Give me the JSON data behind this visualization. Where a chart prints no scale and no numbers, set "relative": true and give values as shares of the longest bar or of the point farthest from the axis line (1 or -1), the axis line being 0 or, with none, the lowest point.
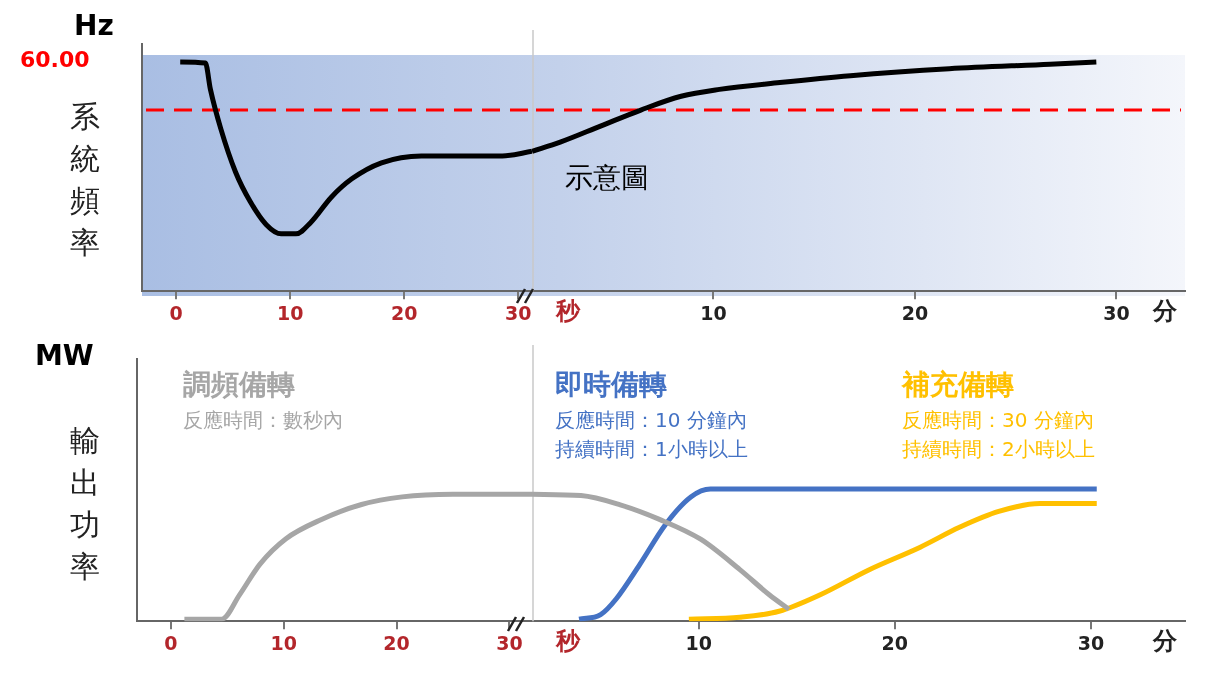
{
  "chart_data": [
    {
      "type": "line",
      "ylabel": "系統頻率",
      "xlabel": "秒",
      "annotations": [
        "Hz",
        "60.00"
      ],
      "relative": true,
      "legend": false,
      "grid": false,
      "marker": "none",
      "series": [
        {
          "color": "#000000",
          "x": [
            0.35,
            2.56,
            3.0,
            3.9,
            5.2,
            6.5,
            7.9,
            9.2,
            10.5,
            11.8,
            13.6,
            15.4,
            18.0,
            21.5,
            25.1,
            28.6,
            31.2
          ],
          "values": [
            1.0,
            0.995,
            0.88,
            0.71,
            0.52,
            0.39,
            0.29,
            0.25,
            0.25,
            0.3,
            0.41,
            0.49,
            0.56,
            0.59,
            0.59,
            0.59,
            0.61
          ]
        }
      ],
      "xlim": [
        -3,
        31.2
      ],
      "xticks": [
        0,
        10,
        20,
        30
      ],
      "ref_lines": [
        {
          "axis": "y",
          "value": 0.79,
          "color": "#ff0000",
          "line_style": "dashed"
        }
      ]
    },
    {
      "type": "line",
      "xlabel": "分",
      "annotations": [
        "示意圖"
      ],
      "relative": true,
      "legend": false,
      "grid": false,
      "marker": "none",
      "series": [
        {
          "color": "#000000",
          "x": [
            1.0,
            2.4,
            4.4,
            6.4,
            8.4,
            10.3,
            13.3,
            16.8,
            21.7,
            26.7,
            29.0
          ],
          "values": [
            0.61,
            0.65,
            0.72,
            0.79,
            0.85,
            0.88,
            0.91,
            0.94,
            0.97,
            0.99,
            1.0
          ]
        }
      ],
      "xlim": [
        1,
        33.4
      ],
      "xticks": [
        10,
        20,
        30
      ],
      "ref_lines": [
        {
          "axis": "y",
          "value": 0.79,
          "color": "#ff0000",
          "line_style": "dashed"
        }
      ]
    },
    {
      "type": "line",
      "ylabel": "輸出功率",
      "xlabel": "秒",
      "annotations": [
        "MW",
        "反應時間：數秒內"
      ],
      "relative": true,
      "legend": false,
      "grid": false,
      "marker": "none",
      "series": [
        {
          "name": "調頻備轉",
          "color": "#a6a6a6",
          "x": [
            1.2,
            4.5,
            6.1,
            7.9,
            10.2,
            13.3,
            16.9,
            20.5,
            25.0,
            32.0
          ],
          "values": [
            0.016,
            0.016,
            0.21,
            0.45,
            0.65,
            0.8,
            0.92,
            0.98,
            1.0,
            1.0
          ]
        }
      ],
      "xlim": [
        -3,
        32
      ],
      "xticks": [
        0,
        10,
        20,
        30
      ]
    },
    {
      "type": "line",
      "xlabel": "分",
      "annotations": [
        "反應時間：10 分鐘內",
        "持續時間：1小時以上",
        "反應時間：30 分鐘內",
        "持續時間：2小時以上"
      ],
      "relative": true,
      "legend": false,
      "grid": false,
      "marker": "none",
      "series": [
        {
          "color": "#a6a6a6",
          "x": [
            1.5,
            4.0,
            6.0,
            8.0,
            10.1,
            12.1,
            13.6,
            14.6
          ],
          "values": [
            0.96,
            0.95,
            0.88,
            0.77,
            0.62,
            0.39,
            0.2,
            0.09
          ]
        },
        {
          "name": "即時備轉",
          "color": "#4472c4",
          "x": [
            3.9,
            5.0,
            5.8,
            7.0,
            8.3,
            9.6,
            10.6,
            12.6,
            20.3,
            30.3
          ],
          "values": [
            0.015,
            0.05,
            0.17,
            0.43,
            0.73,
            0.94,
            1.0,
            1.0,
            1.0,
            1.0
          ]
        },
        {
          "name": "補充備轉",
          "color": "#ffc000",
          "x": [
            9.5,
            12.1,
            14.1,
            16.2,
            18.7,
            21.3,
            23.3,
            25.3,
            27.4,
            30.3
          ],
          "values": [
            0.015,
            0.03,
            0.075,
            0.2,
            0.39,
            0.56,
            0.71,
            0.83,
            0.89,
            0.89
          ]
        }
      ],
      "xlim": [
        1.5,
        34.8
      ],
      "xticks": [
        10,
        20,
        30
      ]
    }
  ]
}
